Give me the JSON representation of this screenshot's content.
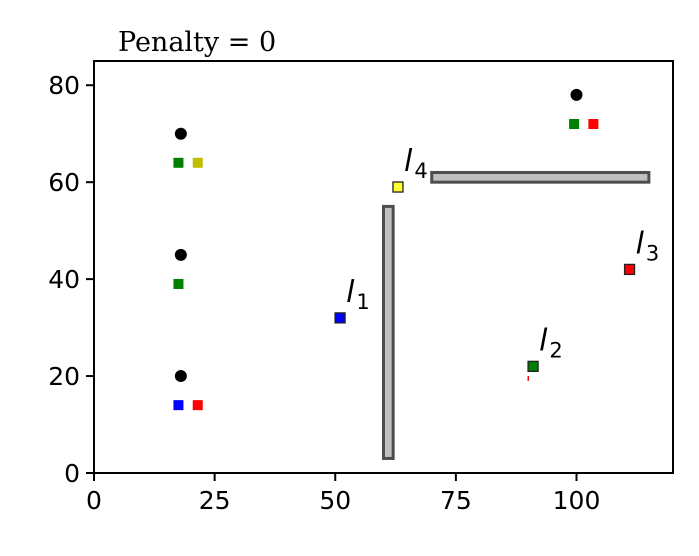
{
  "chart_data": {
    "type": "scatter",
    "title": "Penalty = 0",
    "xlabel": "",
    "ylabel": "",
    "xlim": [
      0,
      120
    ],
    "ylim": [
      0,
      85
    ],
    "xticks": [
      0,
      25,
      50,
      75,
      100
    ],
    "yticks": [
      0,
      20,
      40,
      60,
      80
    ],
    "grid": false,
    "agents": [
      {
        "x": 18,
        "y": 20
      },
      {
        "x": 18,
        "y": 45
      },
      {
        "x": 18,
        "y": 70
      },
      {
        "x": 100,
        "y": 78
      }
    ],
    "agent_color": "#000000",
    "agent_markers": [
      {
        "x": 17.5,
        "y": 14,
        "color": "#0000ff"
      },
      {
        "x": 21.5,
        "y": 14,
        "color": "#ff0000"
      },
      {
        "x": 17.5,
        "y": 39,
        "color": "#008000"
      },
      {
        "x": 17.5,
        "y": 64,
        "color": "#008000"
      },
      {
        "x": 21.5,
        "y": 64,
        "color": "#bfbf00"
      },
      {
        "x": 99.5,
        "y": 72,
        "color": "#008000"
      },
      {
        "x": 103.5,
        "y": 72,
        "color": "#ff0000"
      }
    ],
    "landmarks": [
      {
        "label": "l",
        "sub": "1",
        "x": 51,
        "y": 32,
        "color": "#0000ff"
      },
      {
        "label": "l",
        "sub": "2",
        "x": 91,
        "y": 22,
        "color": "#008000"
      },
      {
        "label": "l",
        "sub": "3",
        "x": 111,
        "y": 42,
        "color": "#ff0000"
      },
      {
        "label": "l",
        "sub": "4",
        "x": 63,
        "y": 59,
        "color": "#ffff33"
      }
    ],
    "obstacles": [
      {
        "x0": 60,
        "x1": 62,
        "y0": 3,
        "y1": 55
      },
      {
        "x0": 70,
        "x1": 115,
        "y0": 60,
        "y1": 62
      }
    ],
    "obstacle_fill": "#c0c0c0",
    "obstacle_edge": "#4d4d4d",
    "trace": {
      "x": 90,
      "y0": 20,
      "y1": 19,
      "color": "#ff0000"
    }
  }
}
